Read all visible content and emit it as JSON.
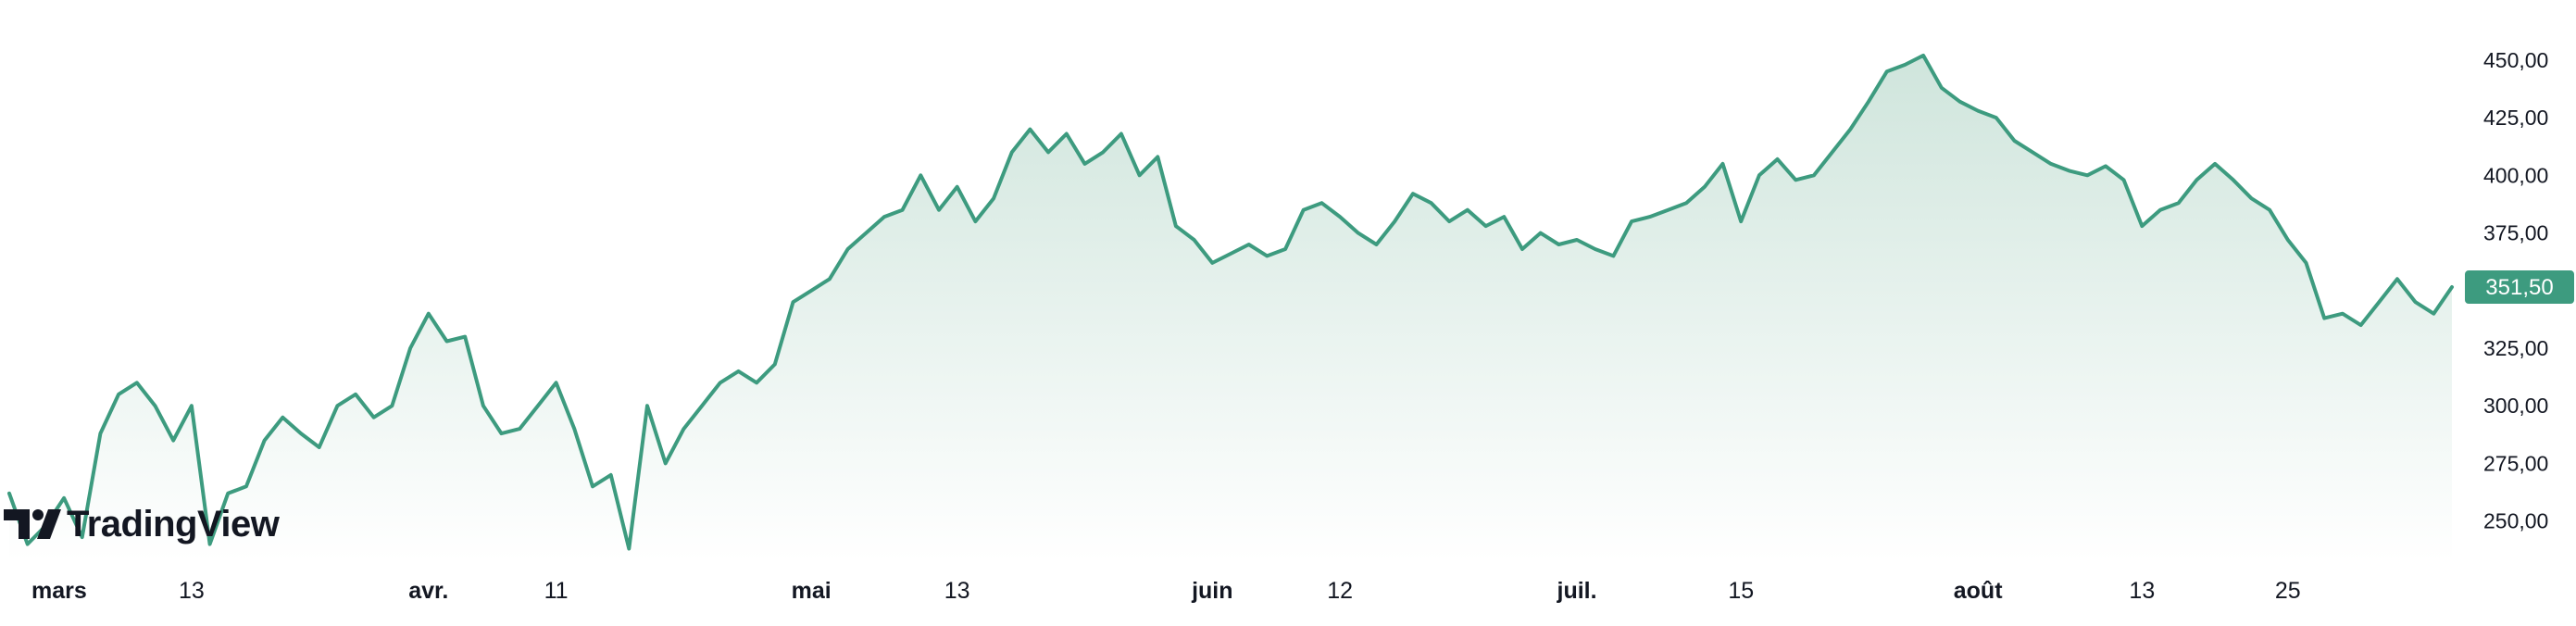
{
  "brand": {
    "name": "TradingView"
  },
  "colors": {
    "line": "#3d9b7f",
    "fill_top": "#cfe5dc",
    "fill_bottom": "#ffffff",
    "text": "#131722",
    "badge": "#3d9b7f"
  },
  "chart_data": {
    "type": "area",
    "last_price_label": "351,50",
    "last_price": 351.5,
    "ylim": [
      235,
      460
    ],
    "y_ticks": [
      {
        "value": 450,
        "label": "450,00"
      },
      {
        "value": 425,
        "label": "425,00"
      },
      {
        "value": 400,
        "label": "400,00"
      },
      {
        "value": 375,
        "label": "375,00"
      },
      {
        "value": 325,
        "label": "325,00"
      },
      {
        "value": 300,
        "label": "300,00"
      },
      {
        "value": 275,
        "label": "275,00"
      },
      {
        "value": 250,
        "label": "250,00"
      }
    ],
    "x_ticks": [
      {
        "label": "mars",
        "bold": true,
        "index": 0
      },
      {
        "label": "13",
        "bold": false,
        "index": 10
      },
      {
        "label": "avr.",
        "bold": true,
        "index": 23
      },
      {
        "label": "11",
        "bold": false,
        "index": 30
      },
      {
        "label": "mai",
        "bold": true,
        "index": 44
      },
      {
        "label": "13",
        "bold": false,
        "index": 52
      },
      {
        "label": "juin",
        "bold": true,
        "index": 66
      },
      {
        "label": "12",
        "bold": false,
        "index": 73
      },
      {
        "label": "juil.",
        "bold": true,
        "index": 86
      },
      {
        "label": "15",
        "bold": false,
        "index": 95
      },
      {
        "label": "août",
        "bold": true,
        "index": 108
      },
      {
        "label": "13",
        "bold": false,
        "index": 117
      },
      {
        "label": "25",
        "bold": false,
        "index": 125
      }
    ],
    "series": [
      {
        "values": [
          262,
          240,
          248,
          260,
          243,
          288,
          305,
          310,
          300,
          285,
          300,
          240,
          262,
          265,
          285,
          295,
          288,
          282,
          300,
          305,
          295,
          300,
          325,
          340,
          328,
          330,
          300,
          288,
          290,
          300,
          310,
          290,
          265,
          270,
          238,
          300,
          275,
          290,
          300,
          310,
          315,
          310,
          318,
          345,
          350,
          355,
          368,
          375,
          382,
          385,
          400,
          385,
          395,
          380,
          390,
          410,
          420,
          410,
          418,
          405,
          410,
          418,
          400,
          408,
          378,
          372,
          362,
          366,
          370,
          365,
          368,
          385,
          388,
          382,
          375,
          370,
          380,
          392,
          388,
          380,
          385,
          378,
          382,
          368,
          375,
          370,
          372,
          368,
          365,
          380,
          382,
          385,
          388,
          395,
          405,
          380,
          400,
          407,
          398,
          400,
          410,
          420,
          432,
          445,
          448,
          452,
          438,
          432,
          428,
          425,
          415,
          410,
          405,
          402,
          400,
          404,
          398,
          378,
          385,
          388,
          398,
          405,
          398,
          390,
          385,
          372,
          362,
          338,
          340,
          335,
          345,
          355,
          345,
          340,
          351.5
        ]
      }
    ]
  }
}
